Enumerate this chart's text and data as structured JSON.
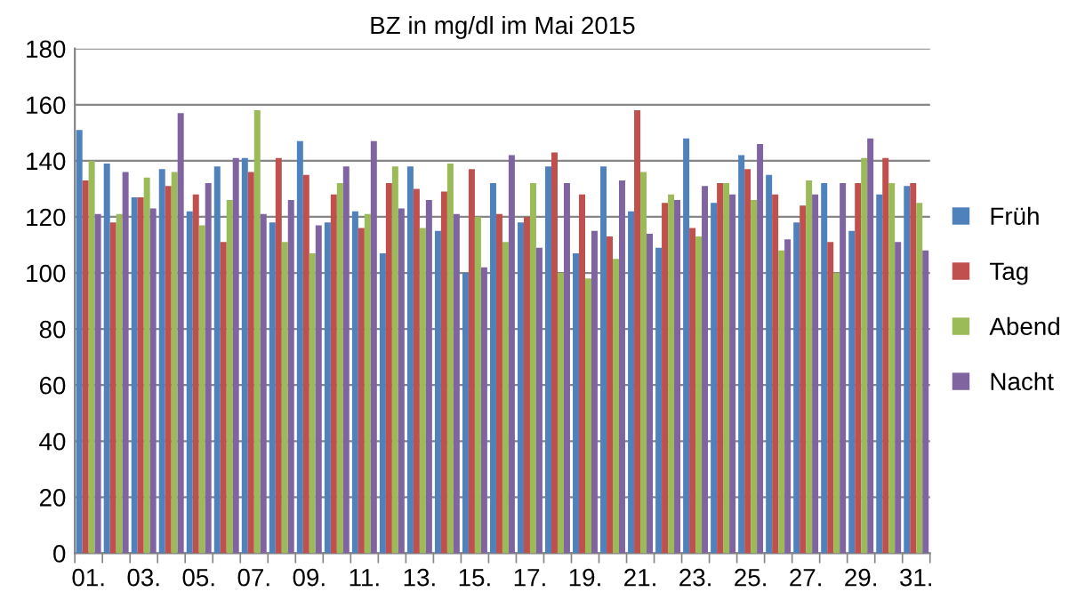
{
  "chart_data": {
    "type": "bar",
    "title": "BZ in mg/dl im Mai 2015",
    "categories": [
      "01.",
      null,
      "03.",
      null,
      "05.",
      null,
      "07.",
      null,
      "09.",
      null,
      "11.",
      null,
      "13.",
      null,
      "15.",
      null,
      "17.",
      null,
      "19.",
      null,
      "21.",
      null,
      "23.",
      null,
      "25.",
      null,
      "27.",
      null,
      "29.",
      null,
      "31."
    ],
    "series": [
      {
        "name": "Früh",
        "color": "#4f81bd",
        "values": [
          151,
          139,
          127,
          137,
          122,
          138,
          141,
          118,
          147,
          118,
          122,
          107,
          138,
          115,
          100,
          132,
          118,
          138,
          107,
          138,
          122,
          109,
          148,
          125,
          142,
          135,
          118,
          132,
          115,
          128,
          131
        ]
      },
      {
        "name": "Tag",
        "color": "#c0504d",
        "values": [
          133,
          118,
          127,
          131,
          128,
          111,
          136,
          141,
          135,
          128,
          116,
          132,
          130,
          129,
          137,
          121,
          120,
          143,
          128,
          113,
          158,
          125,
          116,
          132,
          137,
          128,
          124,
          111,
          132,
          141,
          132
        ]
      },
      {
        "name": "Abend",
        "color": "#9bbb59",
        "values": [
          140,
          121,
          134,
          136,
          117,
          126,
          158,
          111,
          107,
          132,
          121,
          138,
          116,
          139,
          120,
          111,
          132,
          100,
          98,
          105,
          136,
          128,
          113,
          132,
          126,
          108,
          133,
          100,
          141,
          132,
          125
        ]
      },
      {
        "name": "Nacht",
        "color": "#8064a2",
        "values": [
          121,
          136,
          123,
          157,
          132,
          141,
          121,
          126,
          117,
          138,
          147,
          123,
          126,
          121,
          102,
          142,
          109,
          132,
          115,
          133,
          114,
          126,
          131,
          128,
          146,
          112,
          128,
          132,
          148,
          111,
          108
        ]
      }
    ],
    "ylim": [
      0,
      180
    ],
    "yticks": [
      0,
      20,
      40,
      60,
      80,
      100,
      120,
      140,
      160,
      180
    ],
    "grid": "y",
    "legend": "right"
  }
}
